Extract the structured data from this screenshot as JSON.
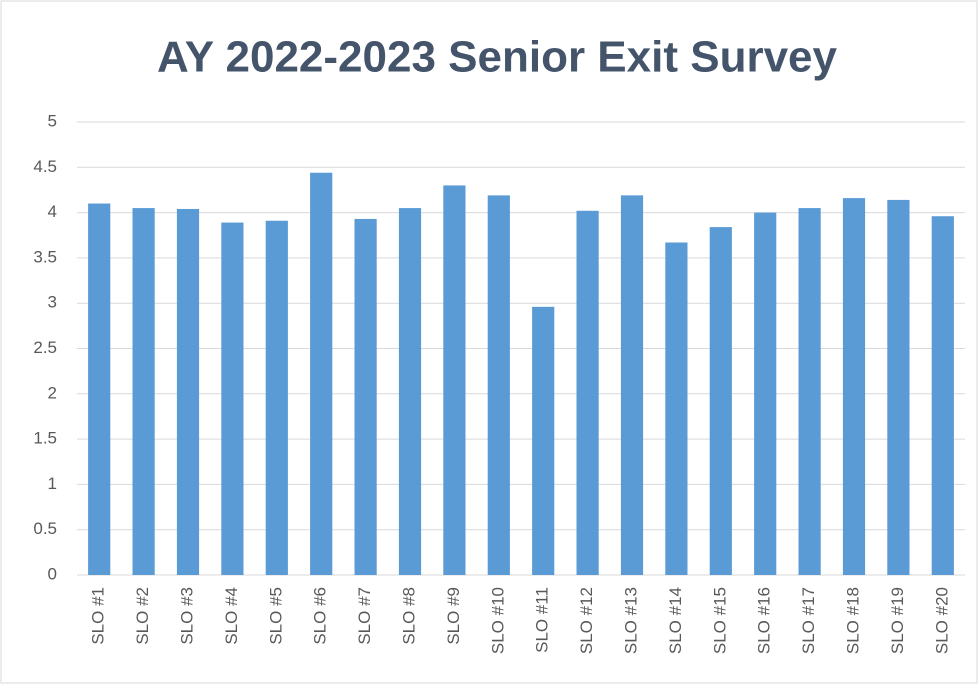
{
  "chart_data": {
    "type": "bar",
    "title": "AY 2022-2023 Senior Exit Survey",
    "categories": [
      "SLO #1",
      "SLO #2",
      "SLO #3",
      "SLO #4",
      "SLO #5",
      "SLO #6",
      "SLO #7",
      "SLO #8",
      "SLO #9",
      "SLO #10",
      "SLO #11",
      "SLO #12",
      "SLO #13",
      "SLO #14",
      "SLO #15",
      "SLO #16",
      "SLO #17",
      "SLO #18",
      "SLO #19",
      "SLO #20"
    ],
    "values": [
      4.1,
      4.05,
      4.04,
      3.89,
      3.91,
      4.44,
      3.93,
      4.05,
      4.3,
      4.19,
      2.96,
      4.02,
      4.19,
      3.67,
      3.84,
      4.0,
      4.05,
      4.16,
      4.14,
      3.96
    ],
    "color": "#5b9bd5",
    "ylim": [
      0,
      5
    ],
    "yticks": [
      0,
      0.5,
      1,
      1.5,
      2,
      2.5,
      3,
      3.5,
      4,
      4.5,
      5
    ],
    "grid": true
  }
}
